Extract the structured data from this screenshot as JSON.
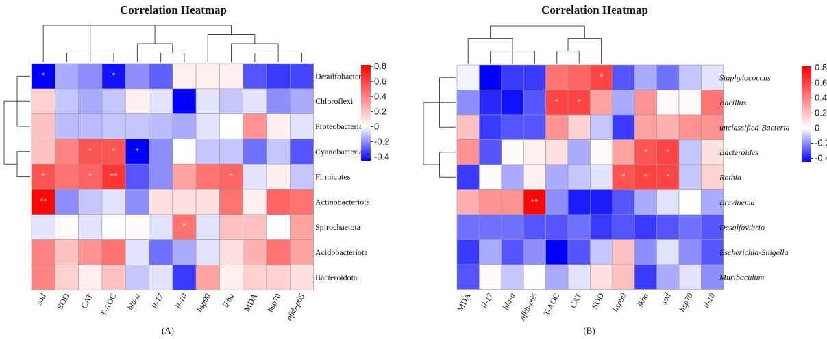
{
  "chart_data": [
    {
      "type": "heatmap",
      "title": "Correlation Heatmap",
      "panel_label": "(A)",
      "rows": [
        "Desulfobacterota",
        "Chloroflexi",
        "Proteobacteria",
        "Cyanobacteria",
        "Firmicutes",
        "Actinobacteriota",
        "Spirochaetota",
        "Acidobacteriota",
        "Bacteroidota"
      ],
      "row_italic": false,
      "columns": [
        "sod",
        "SOD",
        "CAT",
        "T-AOC",
        "hla-a",
        "il-17",
        "il-10",
        "hsp90",
        "ikba",
        "MDA",
        "hsp70",
        "nfkb-p65"
      ],
      "column_italic": [
        true,
        false,
        false,
        false,
        true,
        true,
        true,
        true,
        true,
        false,
        false,
        true
      ],
      "values": [
        [
          -0.45,
          -0.15,
          -0.2,
          -0.42,
          -0.2,
          -0.28,
          0.05,
          0.05,
          0.05,
          -0.3,
          -0.35,
          -0.33
        ],
        [
          0.15,
          -0.1,
          -0.15,
          -0.1,
          0.05,
          -0.05,
          -0.45,
          -0.05,
          -0.1,
          -0.05,
          -0.2,
          -0.15
        ],
        [
          0.2,
          -0.12,
          -0.12,
          -0.1,
          -0.1,
          -0.12,
          -0.15,
          -0.05,
          0.0,
          0.35,
          0.05,
          -0.05
        ],
        [
          0.2,
          0.4,
          0.55,
          0.55,
          -0.45,
          -0.2,
          0.0,
          -0.1,
          -0.1,
          -0.25,
          -0.1,
          -0.3
        ],
        [
          0.55,
          0.45,
          0.5,
          0.65,
          -0.3,
          -0.2,
          0.3,
          0.45,
          0.5,
          -0.05,
          0.05,
          -0.1
        ],
        [
          0.8,
          -0.2,
          -0.1,
          -0.05,
          -0.2,
          0.1,
          0.1,
          0.1,
          0.45,
          0.05,
          0.5,
          0.45
        ],
        [
          -0.05,
          0.02,
          -0.05,
          0.0,
          0.02,
          -0.05,
          0.45,
          -0.05,
          0.2,
          0.2,
          0.0,
          0.3
        ],
        [
          0.4,
          0.2,
          0.35,
          0.45,
          -0.05,
          -0.25,
          -0.15,
          -0.05,
          0.1,
          0.25,
          0.45,
          0.3
        ],
        [
          0.4,
          0.15,
          0.05,
          0.2,
          -0.1,
          -0.05,
          -0.35,
          0.3,
          0.05,
          0.15,
          0.15,
          0.1
        ]
      ],
      "significance": [
        [
          "*",
          "",
          "",
          "*",
          "",
          "",
          "",
          "",
          "",
          "",
          "",
          ""
        ],
        [
          "",
          "",
          "",
          "",
          "",
          "",
          "",
          "",
          "",
          "",
          "",
          ""
        ],
        [
          "",
          "",
          "",
          "",
          "",
          "",
          "",
          "",
          "",
          "",
          "",
          ""
        ],
        [
          "",
          "",
          "*",
          "*",
          "*",
          "",
          "",
          "",
          "",
          "",
          "",
          ""
        ],
        [
          "*",
          "",
          "*",
          "**",
          "",
          "",
          "",
          "",
          "*",
          "",
          "",
          ""
        ],
        [
          "**",
          "",
          "",
          "",
          "",
          "",
          "",
          "",
          "",
          "",
          "",
          ""
        ],
        [
          "",
          "",
          "",
          "",
          "",
          "",
          "*",
          "",
          "",
          "",
          "",
          ""
        ],
        [
          "",
          "",
          "",
          "",
          "",
          "",
          "",
          "",
          "",
          "",
          "",
          ""
        ],
        [
          "",
          "",
          "",
          "",
          "",
          "",
          "",
          "",
          "",
          "",
          "",
          ""
        ]
      ],
      "colorbar": {
        "min": -0.45,
        "max": 0.82,
        "ticks": [
          0.8,
          0.6,
          0.4,
          0.2,
          0,
          -0.2,
          -0.4
        ],
        "tick_labels": [
          "0.8",
          "0.6",
          "0.4",
          "0.2",
          "0",
          "-0.2",
          "-0.4"
        ]
      },
      "colors": {
        "low": "#0000ff",
        "mid": "#ffffff",
        "high": "#ff0000"
      }
    },
    {
      "type": "heatmap",
      "title": "Correlation Heatmap",
      "panel_label": "(B)",
      "rows": [
        "Staphylococcus",
        "Bacillus",
        "unclassified-Bacteria",
        "Bacteroides",
        "Rothia",
        "Brevinema",
        "Desulfovibrio",
        "Escherichia-Shigella",
        "Muribaculum"
      ],
      "row_italic": true,
      "columns": [
        "MDA",
        "il-17",
        "hla-a",
        "nfkb-p65",
        "T-AOC",
        "CAT",
        "SOD",
        "hsp90",
        "ikba",
        "sod",
        "hsp70",
        "il-10"
      ],
      "column_italic": [
        false,
        true,
        true,
        true,
        false,
        false,
        false,
        true,
        true,
        true,
        true,
        true
      ],
      "values": [
        [
          -0.02,
          -0.45,
          -0.35,
          -0.35,
          0.45,
          0.5,
          0.6,
          -0.3,
          -0.15,
          -0.25,
          -0.1,
          -0.05
        ],
        [
          -0.2,
          -0.38,
          -0.42,
          -0.3,
          0.6,
          0.6,
          0.3,
          -0.15,
          0.35,
          0.02,
          0.02,
          0.45
        ],
        [
          0.2,
          -0.35,
          -0.3,
          -0.3,
          0.35,
          0.15,
          -0.1,
          -0.35,
          0.3,
          0.25,
          0.35,
          0.35
        ],
        [
          0.35,
          -0.3,
          0.02,
          0.05,
          0.1,
          -0.15,
          0.02,
          0.3,
          0.55,
          0.6,
          -0.1,
          0.1
        ],
        [
          -0.35,
          0.02,
          -0.15,
          0.05,
          -0.15,
          -0.1,
          -0.05,
          0.55,
          0.6,
          0.6,
          -0.1,
          0.15
        ],
        [
          0.25,
          0.35,
          0.35,
          0.8,
          -0.2,
          -0.4,
          -0.4,
          -0.3,
          -0.15,
          -0.05,
          0.0,
          -0.15
        ],
        [
          -0.25,
          -0.25,
          -0.25,
          -0.3,
          -0.3,
          -0.25,
          -0.35,
          -0.3,
          -0.35,
          -0.3,
          -0.25,
          -0.3
        ],
        [
          -0.35,
          -0.15,
          -0.3,
          -0.2,
          -0.45,
          -0.3,
          -0.1,
          0.2,
          -0.2,
          -0.05,
          -0.2,
          -0.3
        ],
        [
          -0.3,
          0.02,
          -0.1,
          0.0,
          -0.15,
          -0.05,
          0.1,
          0.2,
          -0.35,
          -0.15,
          -0.05,
          -0.2
        ]
      ],
      "significance": [
        [
          "",
          "",
          "",
          "",
          "",
          "",
          "*",
          "",
          "",
          "",
          "",
          ""
        ],
        [
          "",
          "",
          "",
          "",
          "*",
          "*",
          "",
          "",
          "",
          "",
          "",
          ""
        ],
        [
          "",
          "",
          "",
          "",
          "",
          "",
          "",
          "",
          "",
          "",
          "",
          ""
        ],
        [
          "",
          "",
          "",
          "",
          "",
          "",
          "",
          "",
          "*",
          "*",
          "",
          ""
        ],
        [
          "",
          "",
          "",
          "",
          "",
          "",
          "",
          "*",
          "*",
          "*",
          "",
          ""
        ],
        [
          "",
          "",
          "",
          "**",
          "",
          "",
          "",
          "",
          "",
          "",
          "",
          ""
        ],
        [
          "",
          "",
          "",
          "",
          "",
          "",
          "",
          "",
          "",
          "",
          "",
          ""
        ],
        [
          "",
          "",
          "",
          "",
          "",
          "",
          "",
          "",
          "",
          "",
          "",
          ""
        ],
        [
          "",
          "",
          "",
          "",
          "",
          "",
          "",
          "",
          "",
          "",
          "",
          ""
        ]
      ],
      "colorbar": {
        "min": -0.45,
        "max": 0.82,
        "ticks": [
          0.8,
          0.6,
          0.4,
          0.2,
          0,
          -0.2,
          -0.4
        ],
        "tick_labels": [
          "0.8",
          "0.6",
          "0.4",
          "0.2",
          "0",
          "-0.2",
          "-0.4"
        ]
      },
      "colors": {
        "low": "#0000ff",
        "mid": "#ffffff",
        "high": "#ff0000"
      }
    }
  ]
}
